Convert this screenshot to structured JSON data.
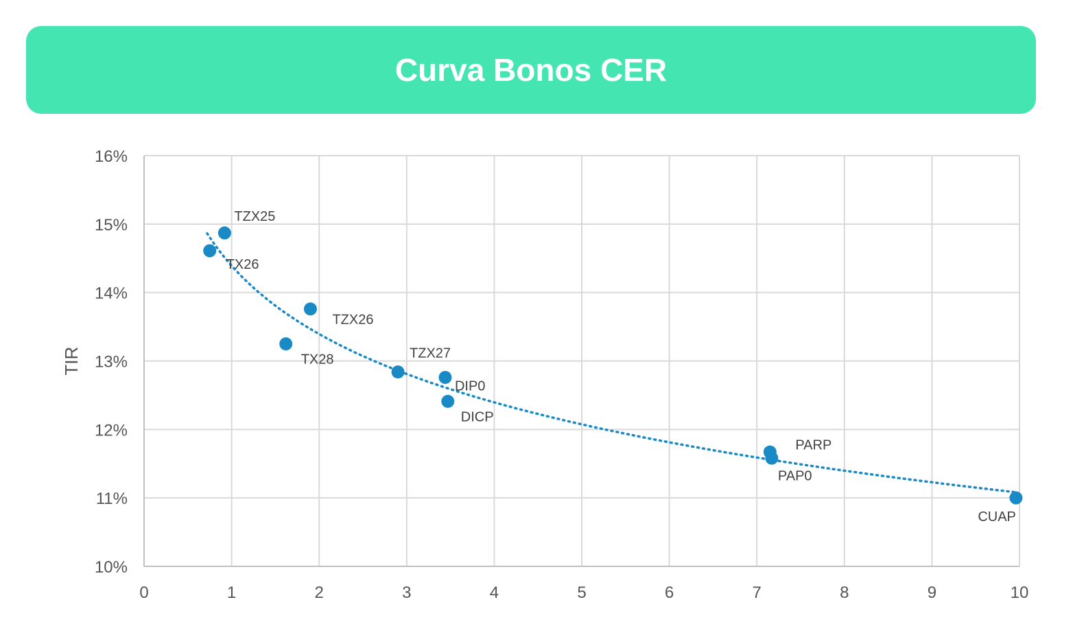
{
  "header": {
    "title": "Curva Bonos CER"
  },
  "chart_data": {
    "type": "scatter",
    "title": "Curva Bonos CER",
    "xlabel": "",
    "ylabel": "TIR",
    "xlim": [
      0,
      10
    ],
    "ylim": [
      0.1,
      0.16
    ],
    "xticks": [
      0,
      1,
      2,
      3,
      4,
      5,
      6,
      7,
      8,
      9,
      10
    ],
    "xtick_labels": [
      "0",
      "1",
      "2",
      "3",
      "4",
      "5",
      "6",
      "7",
      "8",
      "9",
      "10"
    ],
    "yticks": [
      0.1,
      0.11,
      0.12,
      0.13,
      0.14,
      0.15,
      0.16
    ],
    "ytick_labels": [
      "10%",
      "11%",
      "12%",
      "13%",
      "14%",
      "15%",
      "16%"
    ],
    "grid": true,
    "legend": "none",
    "point_color": "#1a8ac6",
    "trendline_color": "#1a8ac6",
    "points": [
      {
        "label": "TZX25",
        "x": 0.92,
        "y": 0.1487
      },
      {
        "label": "TX26",
        "x": 0.75,
        "y": 0.1461
      },
      {
        "label": "TZX26",
        "x": 1.9,
        "y": 0.1376
      },
      {
        "label": "TX28",
        "x": 1.62,
        "y": 0.1325
      },
      {
        "label": "TZX27",
        "x": 2.9,
        "y": 0.1284
      },
      {
        "label": "DIP0",
        "x": 3.44,
        "y": 0.1276
      },
      {
        "label": "DICP",
        "x": 3.47,
        "y": 0.1241
      },
      {
        "label": "PARP",
        "x": 7.15,
        "y": 0.1167
      },
      {
        "label": "PAP0",
        "x": 7.17,
        "y": 0.1158
      },
      {
        "label": "CUAP",
        "x": 9.96,
        "y": 0.11
      }
    ],
    "trendline": {
      "type": "logarithmic",
      "style": "dotted",
      "x_range": [
        0.72,
        9.96
      ]
    }
  }
}
